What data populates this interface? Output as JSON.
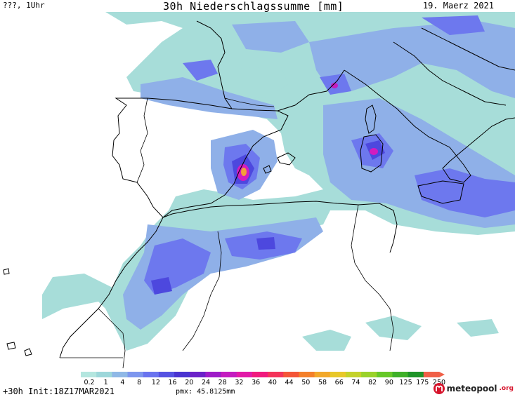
{
  "header": {
    "left": "???, 1Uhr",
    "title": "30h Niederschlagssumme [mm]",
    "date": "19. Maerz 2021"
  },
  "legend": {
    "labels": [
      "0.2",
      "1",
      "4",
      "8",
      "12",
      "16",
      "20",
      "24",
      "28",
      "32",
      "36",
      "40",
      "44",
      "50",
      "58",
      "66",
      "74",
      "82",
      "90",
      "125",
      "175",
      "250"
    ],
    "colors": [
      "#b4e6df",
      "#9dd7da",
      "#8fb8e6",
      "#7d96ee",
      "#6a74ef",
      "#5552e2",
      "#4a34d0",
      "#6b22c8",
      "#9e1cc8",
      "#c41cc0",
      "#e21aa8",
      "#f01a7e",
      "#f4345a",
      "#f45638",
      "#f4802a",
      "#f2a82a",
      "#e8c82a",
      "#c4d22a",
      "#9ad22a",
      "#66c828",
      "#3eb028",
      "#1e9428",
      "#f06048"
    ]
  },
  "footer": {
    "init": "+30h Init:18Z17MAR2021",
    "pmx": "pmx: 45.8125mm"
  },
  "brand": {
    "name": "meteopool",
    "tld": ".org"
  },
  "colors": {
    "light": "#a7ddd9",
    "mid": "#8fb0e8",
    "blue": "#6d78ee",
    "deep": "#4d48de",
    "magenta": "#d21cc0",
    "orange": "#f4a03a"
  }
}
